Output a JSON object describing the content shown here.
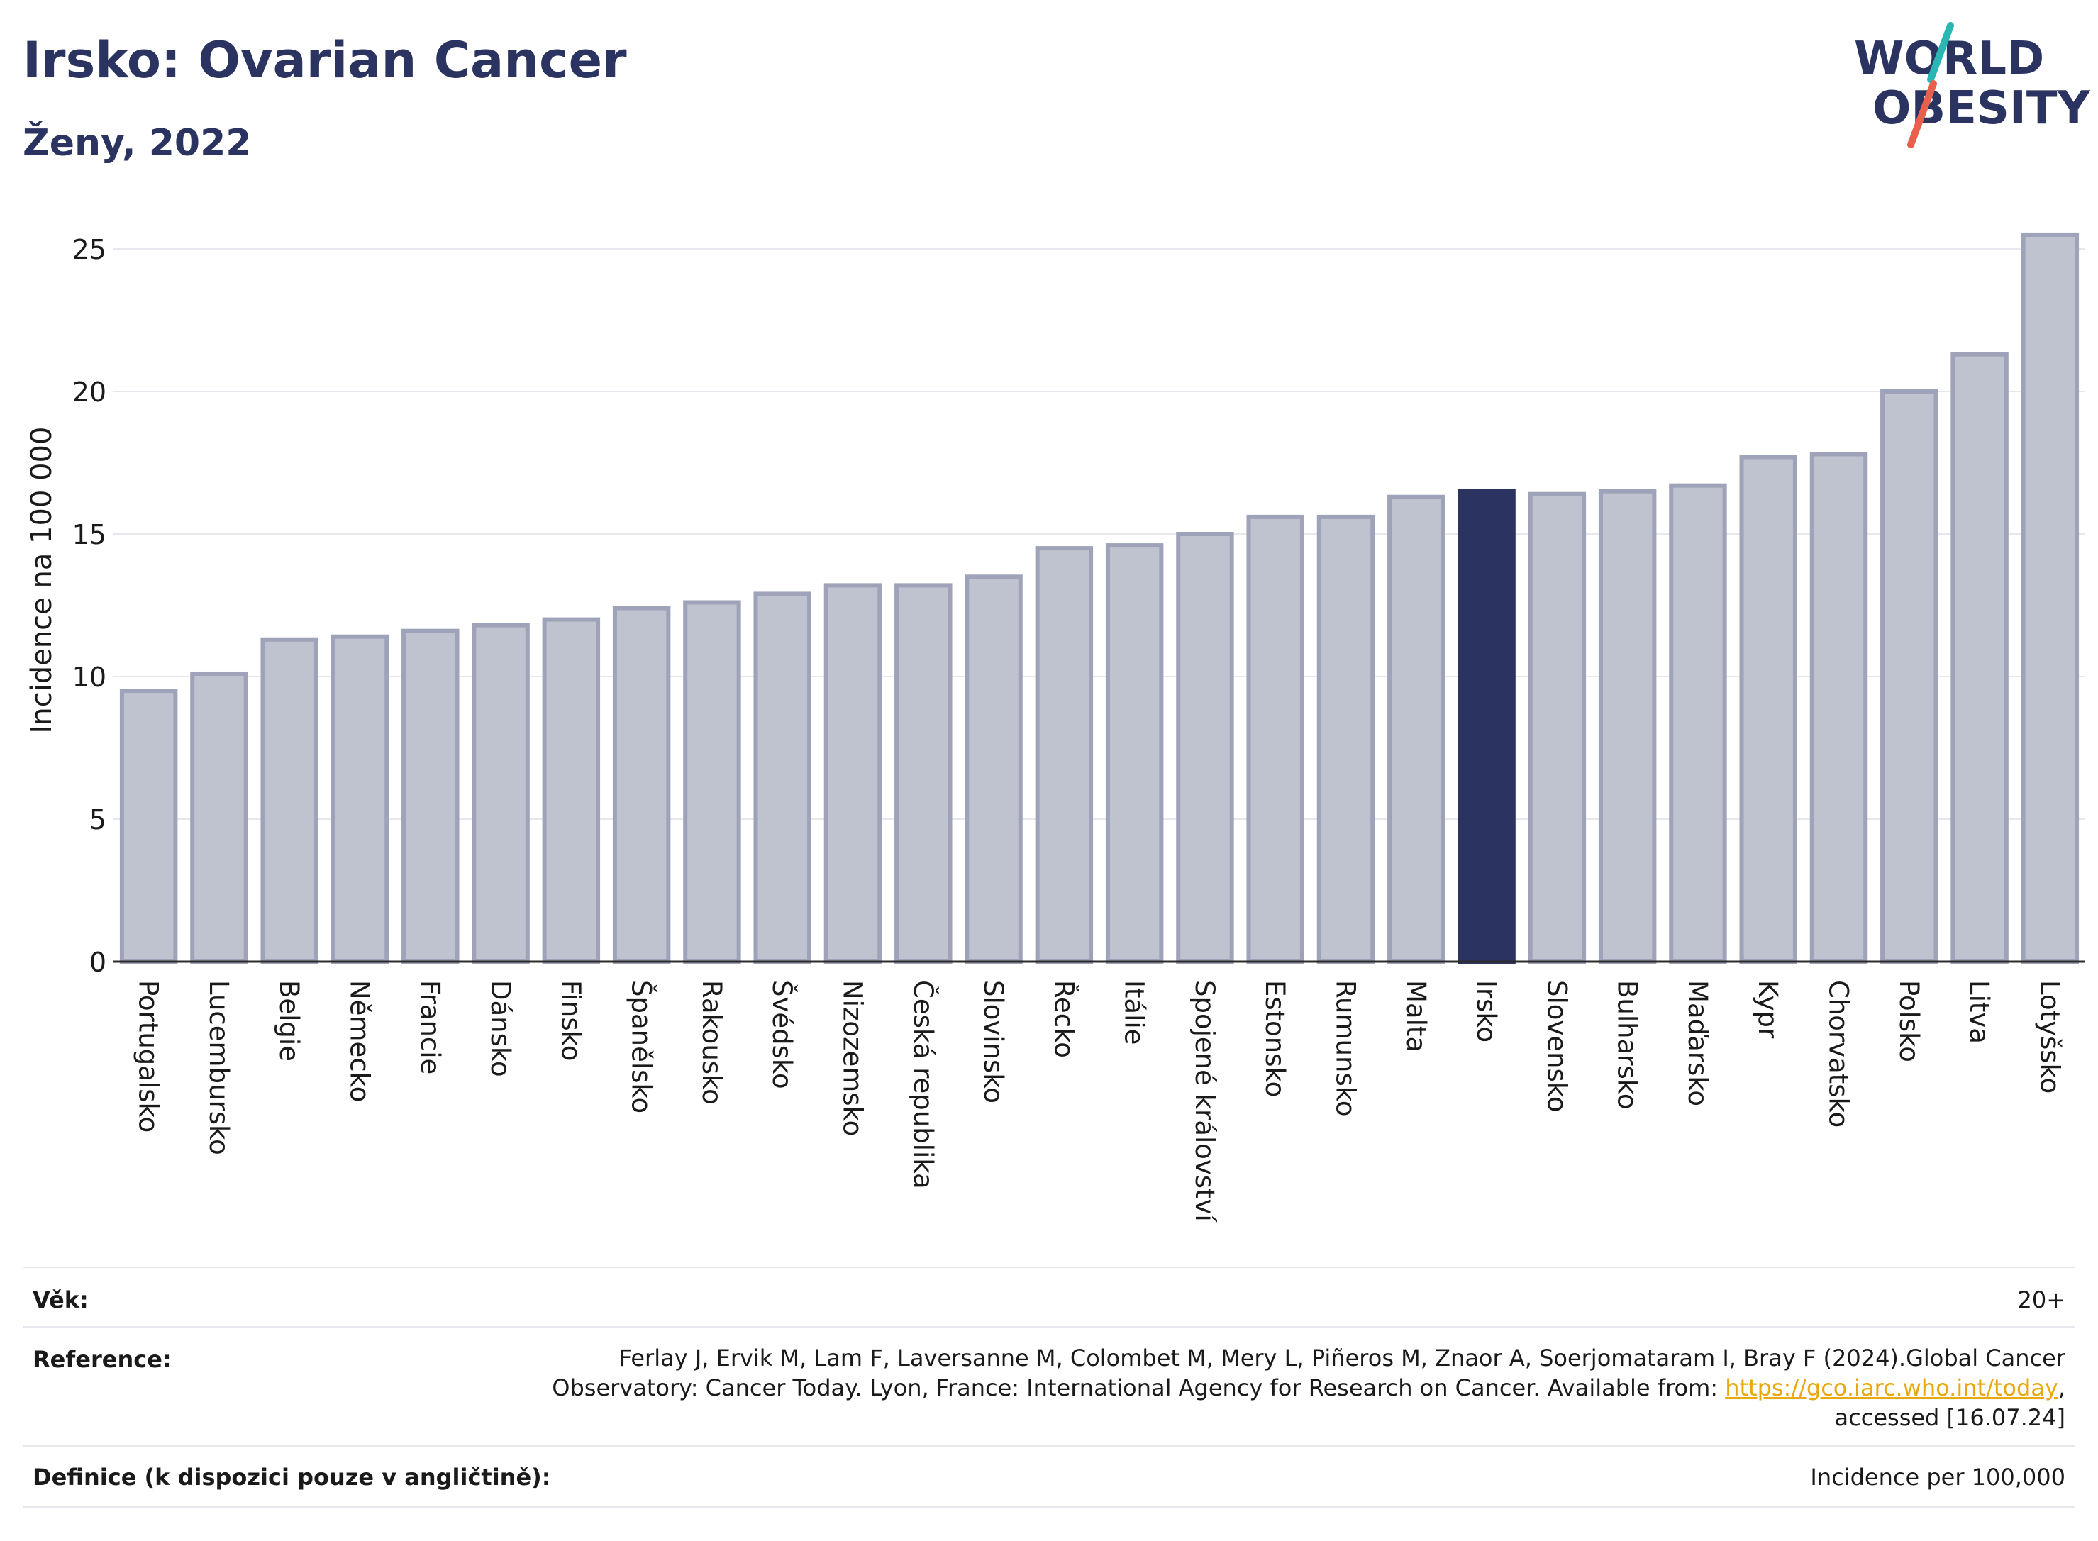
{
  "header": {
    "title": "Irsko: Ovarian Cancer",
    "subtitle": "Ženy, 2022"
  },
  "logo": {
    "line1": "WORLD",
    "line2": "OBESITY"
  },
  "chart_data": {
    "type": "bar",
    "ylabel": "Incidence na 100 000",
    "ylim": [
      0,
      26.5
    ],
    "yticks": [
      0,
      5,
      10,
      15,
      20,
      25
    ],
    "grid": true,
    "highlight": "Irsko",
    "categories": [
      "Portugalsko",
      "Lucembursko",
      "Belgie",
      "Německo",
      "Francie",
      "Dánsko",
      "Finsko",
      "Španělsko",
      "Rakousko",
      "Švédsko",
      "Nizozemsko",
      "Česká republika",
      "Slovinsko",
      "Řecko",
      "Itálie",
      "Spojené království",
      "Estonsko",
      "Rumunsko",
      "Malta",
      "Irsko",
      "Slovensko",
      "Bulharsko",
      "Maďarsko",
      "Kypr",
      "Chorvatsko",
      "Polsko",
      "Litva",
      "Lotyšsko"
    ],
    "values": [
      9.5,
      10.1,
      11.3,
      11.4,
      11.6,
      11.8,
      12.0,
      12.4,
      12.6,
      12.9,
      13.2,
      13.2,
      13.5,
      14.5,
      14.6,
      15.0,
      15.6,
      15.6,
      16.3,
      16.5,
      16.4,
      16.5,
      16.7,
      17.7,
      17.8,
      20.0,
      21.3,
      25.5
    ]
  },
  "colors": {
    "bar": "#bfc2cf",
    "bar_edge": "#9ea3b9",
    "highlight": "#2b3461",
    "title": "#2b3461",
    "grid": "#e6e8ee",
    "link": "#e8a80e",
    "logo_teal": "#2ab7b3",
    "logo_red": "#e8604c"
  },
  "meta": {
    "age_label": "Věk:",
    "age_value": "20+",
    "reference_label": "Reference:",
    "reference_line1": "Ferlay J, Ervik M, Lam F, Laversanne M, Colombet M, Mery L, Piñeros M, Znaor A, Soerjomataram I, Bray F (2024).Global Cancer",
    "reference_line2_pre": "Observatory: Cancer Today. Lyon, France: International Agency for Research on Cancer. Available from: ",
    "reference_link": "https://gco.iarc.who.int/today",
    "reference_line2_post": ",",
    "reference_line3": "accessed [16.07.24]",
    "definition_label": "Definice (k dispozici pouze v angličtině):",
    "definition_value": "Incidence per 100,000"
  }
}
